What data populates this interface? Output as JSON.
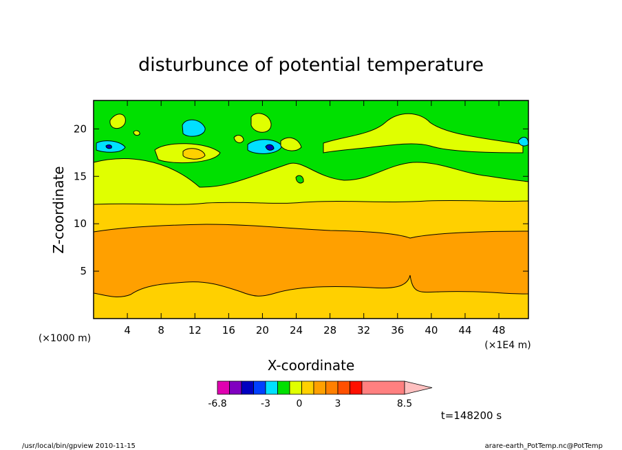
{
  "chart_data": {
    "type": "heatmap",
    "title": "disturbunce of potential temperature",
    "xlabel": "X-coordinate",
    "ylabel": "Z-coordinate",
    "x_unit_label": "(×1E4 m)",
    "z_unit_label": "(×1000 m)",
    "xlim": [
      0,
      51.5
    ],
    "ylim": [
      0,
      23
    ],
    "x_ticks": [
      "4",
      "8",
      "12",
      "16",
      "20",
      "24",
      "28",
      "32",
      "36",
      "40",
      "44",
      "48"
    ],
    "y_ticks": [
      "5",
      "10",
      "15",
      "20"
    ],
    "colorbar": {
      "tick_labels": [
        "-6.8",
        "-3",
        "0",
        "3",
        "8.5"
      ],
      "colors": [
        "#e000b0",
        "#8000c0",
        "#0000c0",
        "#0040ff",
        "#00e0ff",
        "#00e000",
        "#e0ff00",
        "#ffd000",
        "#ffa000",
        "#ff8000",
        "#ff5000",
        "#ff1000",
        "#ff8080"
      ]
    },
    "layers": [
      {
        "name": "layer-bottom",
        "color": "#ffd000",
        "z_from": 0,
        "z_to": 2.5
      },
      {
        "name": "layer-core",
        "color": "#ffa000",
        "z_from": 2.5,
        "z_to": 9.2
      },
      {
        "name": "layer-mid",
        "color": "#ffd000",
        "z_from": 9.2,
        "z_to": 12.2
      },
      {
        "name": "layer-upper",
        "color": "#e0ff00",
        "z_from": 12.2,
        "z_to": 15.2
      },
      {
        "name": "layer-top",
        "color": "#00e000",
        "z_from": 15.2,
        "z_to": 23
      }
    ],
    "time_label": "t=148200 s"
  },
  "footer": {
    "left": "/usr/local/bin/gpview  2010-11-15",
    "right": "arare-earth_PotTemp.nc@PotTemp"
  }
}
